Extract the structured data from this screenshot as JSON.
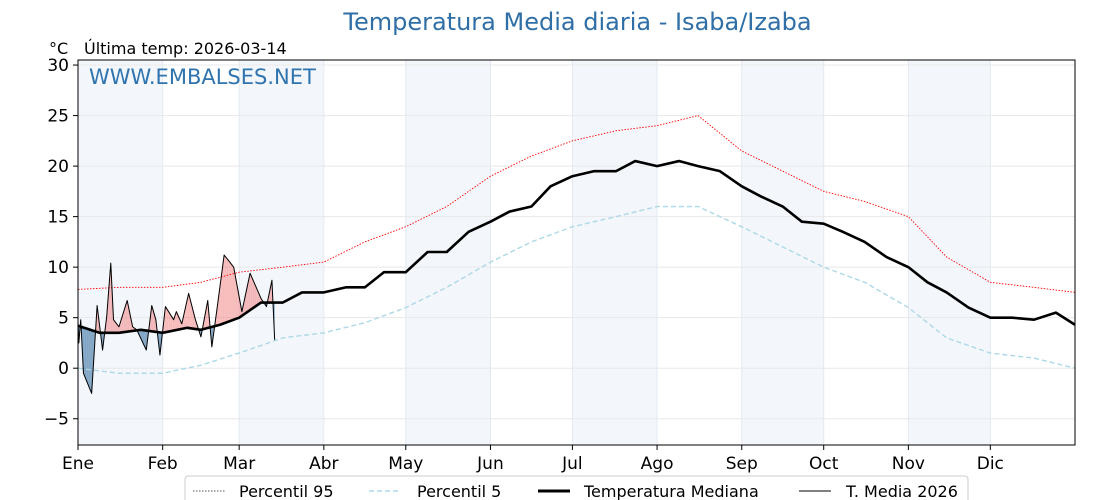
{
  "title": "Temperatura Media diaria - Isaba/Izaba",
  "unit": "°C",
  "last_temp": "Última temp: 2026-03-14",
  "watermark": "WWW.EMBALSES.NET",
  "colors": {
    "title": "#2f6fa6",
    "p95": "#ff0000",
    "p5": "#add8e6",
    "median": "#000000",
    "year": "#000000",
    "above": "#f08080",
    "below": "#1f5f96",
    "band": "#f3f7fc"
  },
  "chart_data": {
    "type": "line",
    "title": "Temperatura Media diaria - Isaba/Izaba",
    "xlabel": "",
    "ylabel": "°C",
    "xlim": [
      0,
      365
    ],
    "ylim": [
      -7.6,
      30.5
    ],
    "yticks": [
      -5,
      0,
      5,
      10,
      15,
      20,
      25,
      30
    ],
    "month_ticks": [
      {
        "label": "Ene",
        "day": 0
      },
      {
        "label": "Feb",
        "day": 31
      },
      {
        "label": "Mar",
        "day": 59
      },
      {
        "label": "Abr",
        "day": 90
      },
      {
        "label": "May",
        "day": 120
      },
      {
        "label": "Jun",
        "day": 151
      },
      {
        "label": "Jul",
        "day": 181
      },
      {
        "label": "Ago",
        "day": 212
      },
      {
        "label": "Sep",
        "day": 243
      },
      {
        "label": "Oct",
        "day": 273
      },
      {
        "label": "Nov",
        "day": 304
      },
      {
        "label": "Dic",
        "day": 334
      }
    ],
    "grid": true,
    "legend_position": "bottom-center",
    "series": [
      {
        "name": "Percentil 95",
        "style": "dotted",
        "points": [
          [
            0,
            7.8
          ],
          [
            15,
            8
          ],
          [
            31,
            8
          ],
          [
            45,
            8.5
          ],
          [
            59,
            9.5
          ],
          [
            75,
            10
          ],
          [
            90,
            10.5
          ],
          [
            105,
            12.5
          ],
          [
            120,
            14
          ],
          [
            135,
            16
          ],
          [
            151,
            19
          ],
          [
            166,
            21
          ],
          [
            181,
            22.5
          ],
          [
            197,
            23.5
          ],
          [
            212,
            24
          ],
          [
            227,
            25
          ],
          [
            243,
            21.5
          ],
          [
            258,
            19.5
          ],
          [
            273,
            17.5
          ],
          [
            288,
            16.5
          ],
          [
            304,
            15
          ],
          [
            318,
            11
          ],
          [
            334,
            8.5
          ],
          [
            350,
            8
          ],
          [
            365,
            7.5
          ]
        ]
      },
      {
        "name": "Percentil 5",
        "style": "dashed",
        "points": [
          [
            0,
            0
          ],
          [
            15,
            -0.5
          ],
          [
            31,
            -0.5
          ],
          [
            45,
            0.3
          ],
          [
            59,
            1.5
          ],
          [
            75,
            3
          ],
          [
            90,
            3.5
          ],
          [
            105,
            4.5
          ],
          [
            120,
            6
          ],
          [
            135,
            8
          ],
          [
            151,
            10.5
          ],
          [
            166,
            12.5
          ],
          [
            181,
            14
          ],
          [
            197,
            15
          ],
          [
            212,
            16
          ],
          [
            227,
            16
          ],
          [
            243,
            14
          ],
          [
            258,
            12
          ],
          [
            273,
            10
          ],
          [
            288,
            8.5
          ],
          [
            304,
            6
          ],
          [
            318,
            3
          ],
          [
            334,
            1.5
          ],
          [
            350,
            1
          ],
          [
            365,
            0
          ]
        ]
      },
      {
        "name": "Temperatura Mediana",
        "style": "solid-thick",
        "points": [
          [
            0,
            4.2
          ],
          [
            8,
            3.5
          ],
          [
            15,
            3.5
          ],
          [
            23,
            3.8
          ],
          [
            31,
            3.5
          ],
          [
            40,
            4
          ],
          [
            45,
            3.8
          ],
          [
            52,
            4.3
          ],
          [
            59,
            5
          ],
          [
            67,
            6.5
          ],
          [
            75,
            6.5
          ],
          [
            82,
            7.5
          ],
          [
            90,
            7.5
          ],
          [
            98,
            8
          ],
          [
            105,
            8
          ],
          [
            112,
            9.5
          ],
          [
            120,
            9.5
          ],
          [
            128,
            11.5
          ],
          [
            135,
            11.5
          ],
          [
            143,
            13.5
          ],
          [
            151,
            14.5
          ],
          [
            158,
            15.5
          ],
          [
            166,
            16
          ],
          [
            173,
            18
          ],
          [
            181,
            19
          ],
          [
            189,
            19.5
          ],
          [
            197,
            19.5
          ],
          [
            204,
            20.5
          ],
          [
            212,
            20
          ],
          [
            220,
            20.5
          ],
          [
            227,
            20
          ],
          [
            235,
            19.5
          ],
          [
            243,
            18
          ],
          [
            250,
            17
          ],
          [
            258,
            16
          ],
          [
            265,
            14.5
          ],
          [
            273,
            14.3
          ],
          [
            280,
            13.5
          ],
          [
            288,
            12.5
          ],
          [
            296,
            11
          ],
          [
            304,
            10
          ],
          [
            311,
            8.5
          ],
          [
            318,
            7.5
          ],
          [
            326,
            6
          ],
          [
            334,
            5
          ],
          [
            342,
            5
          ],
          [
            350,
            4.8
          ],
          [
            358,
            5.5
          ],
          [
            365,
            4.3
          ]
        ]
      },
      {
        "name": "T. Media 2026",
        "style": "solid-thin",
        "points": [
          [
            0,
            4.4
          ],
          [
            0.3,
            2.5
          ],
          [
            1,
            4.8
          ],
          [
            2,
            -0.5
          ],
          [
            5,
            -2.5
          ],
          [
            7,
            6.2
          ],
          [
            9,
            1.8
          ],
          [
            10.5,
            5.1
          ],
          [
            12,
            10.4
          ],
          [
            13,
            4.8
          ],
          [
            15,
            4.1
          ],
          [
            18,
            6.7
          ],
          [
            20,
            4.1
          ],
          [
            21.5,
            3.8
          ],
          [
            25,
            1.8
          ],
          [
            27,
            6.2
          ],
          [
            28.5,
            4.8
          ],
          [
            30,
            1.3
          ],
          [
            32,
            6.1
          ],
          [
            35,
            4.8
          ],
          [
            36,
            5.6
          ],
          [
            38,
            4.4
          ],
          [
            40.5,
            7.4
          ],
          [
            43,
            4.8
          ],
          [
            45,
            3.1
          ],
          [
            47.5,
            6.7
          ],
          [
            49,
            2.1
          ],
          [
            51,
            6.1
          ],
          [
            53.5,
            11.2
          ],
          [
            55,
            10.7
          ],
          [
            57,
            10
          ],
          [
            60,
            5.6
          ],
          [
            63,
            9.4
          ],
          [
            67,
            6.9
          ],
          [
            69,
            6.1
          ],
          [
            71,
            8.7
          ],
          [
            72,
            2.8
          ]
        ]
      }
    ]
  }
}
